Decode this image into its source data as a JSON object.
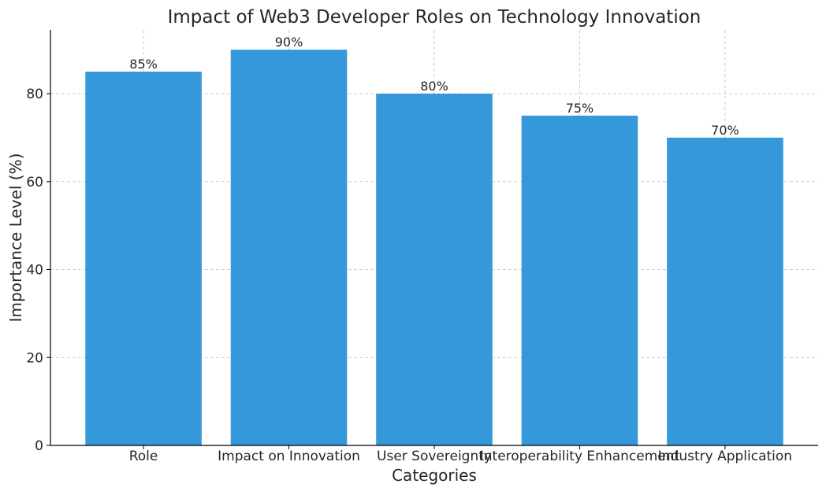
{
  "chart_data": {
    "type": "bar",
    "title": "Impact of Web3 Developer Roles on Technology Innovation",
    "xlabel": "Categories",
    "ylabel": "Importance Level (%)",
    "categories": [
      "Role",
      "Impact on Innovation",
      "User Sovereignty",
      "Interoperability Enhancement",
      "Industry Application"
    ],
    "values": [
      85,
      90,
      80,
      75,
      70
    ],
    "data_labels": [
      "85%",
      "90%",
      "80%",
      "75%",
      "70%"
    ],
    "ylim": [
      0,
      94.5
    ],
    "yticks": [
      0,
      20,
      40,
      60,
      80
    ],
    "grid": true,
    "bar_color": "#3498db"
  }
}
